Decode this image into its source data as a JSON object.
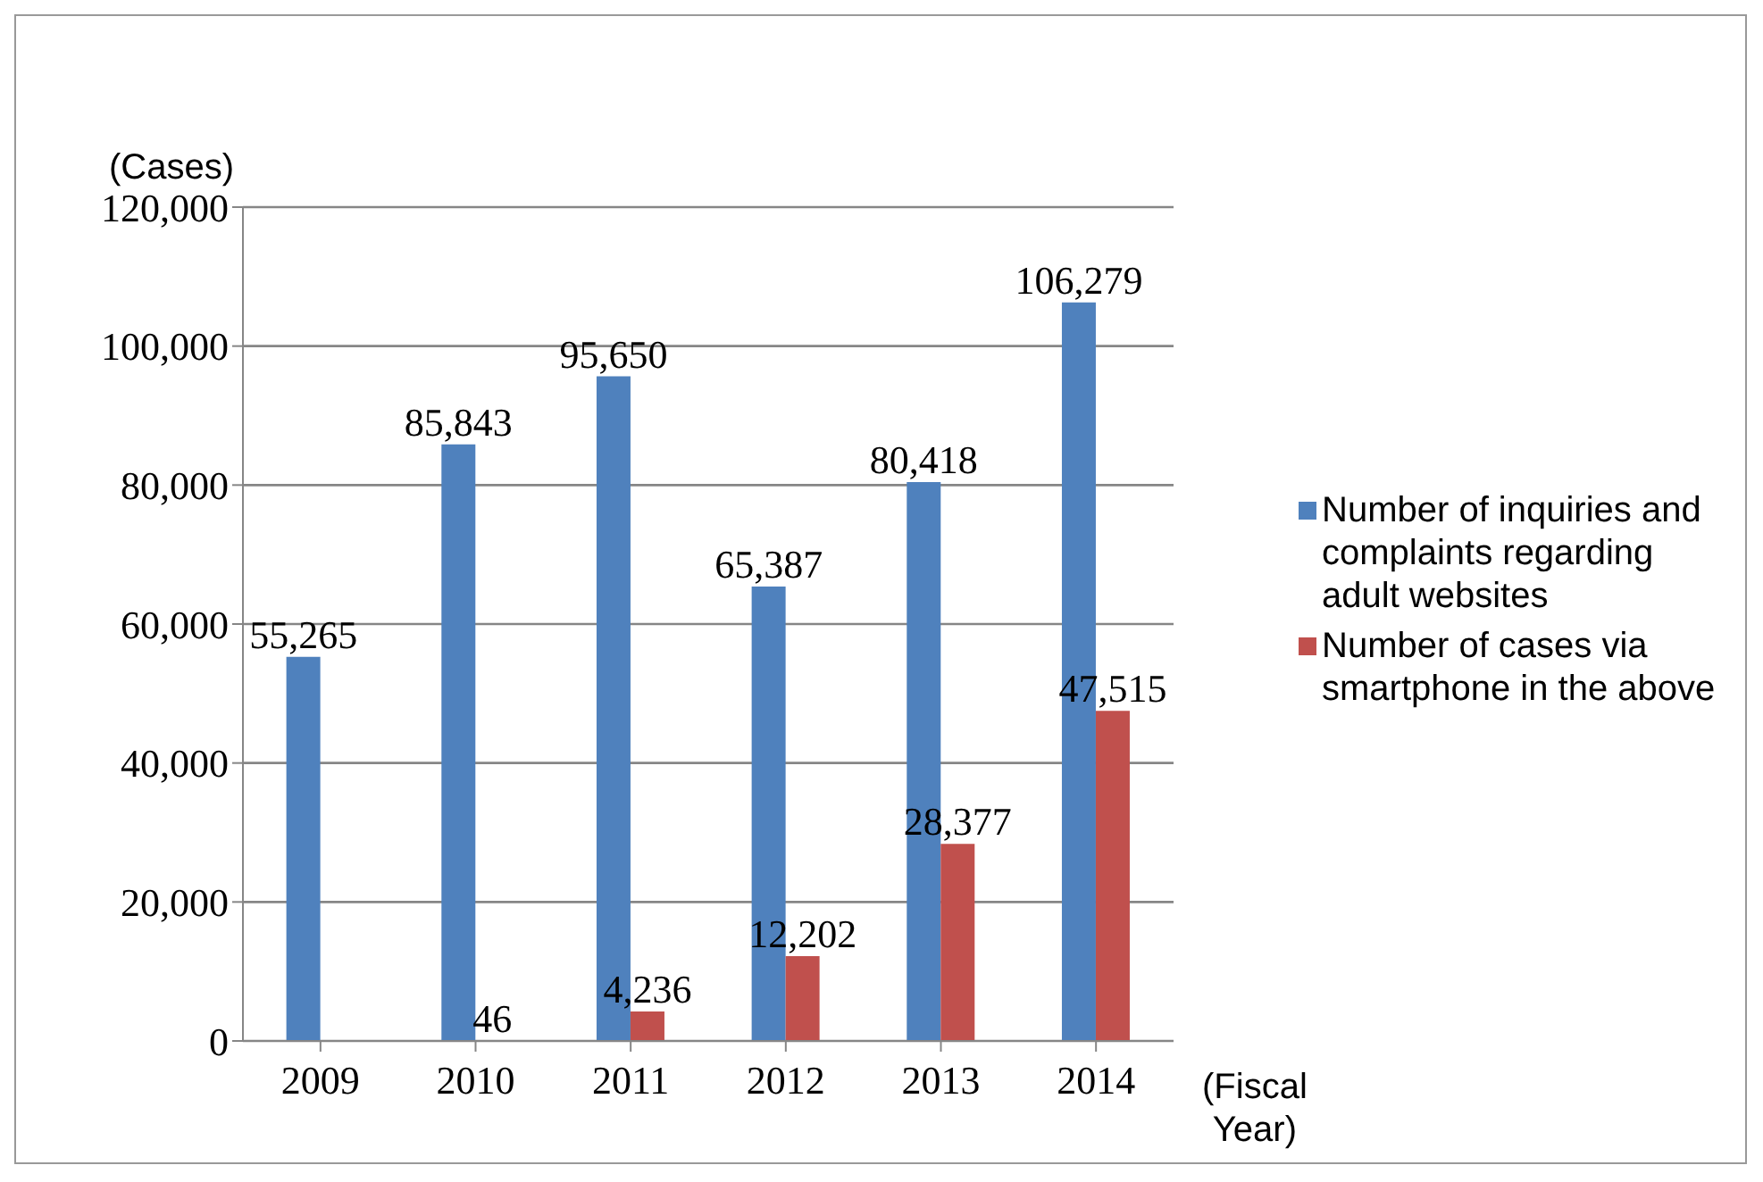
{
  "chart_data": {
    "type": "bar",
    "ylabel": "(Cases)",
    "xlabel": "(Fiscal Year)",
    "categories": [
      "2009",
      "2010",
      "2011",
      "2012",
      "2013",
      "2014"
    ],
    "series": [
      {
        "name": "Number of inquiries and complaints regarding adult websites",
        "color": "#4f81bd",
        "values": [
          55265,
          85843,
          95650,
          65387,
          80418,
          106279
        ],
        "value_labels": [
          "55,265",
          "85,843",
          "95,650",
          "65,387",
          "80,418",
          "106,279"
        ]
      },
      {
        "name": "Number of cases via smartphone in the above",
        "color": "#c0504d",
        "values": [
          null,
          46,
          4236,
          12202,
          28377,
          47515
        ],
        "value_labels": [
          null,
          "46",
          "4,236",
          "12,202",
          "28,377",
          "47,515"
        ]
      }
    ],
    "ylim": [
      0,
      120000
    ],
    "yticks": [
      {
        "value": 0,
        "label": "0"
      },
      {
        "value": 20000,
        "label": "20,000"
      },
      {
        "value": 40000,
        "label": "40,000"
      },
      {
        "value": 60000,
        "label": "60,000"
      },
      {
        "value": 80000,
        "label": "80,000"
      },
      {
        "value": 100000,
        "label": "100,000"
      },
      {
        "value": 120000,
        "label": "120,000"
      }
    ],
    "grid": "y",
    "legend": "right"
  }
}
